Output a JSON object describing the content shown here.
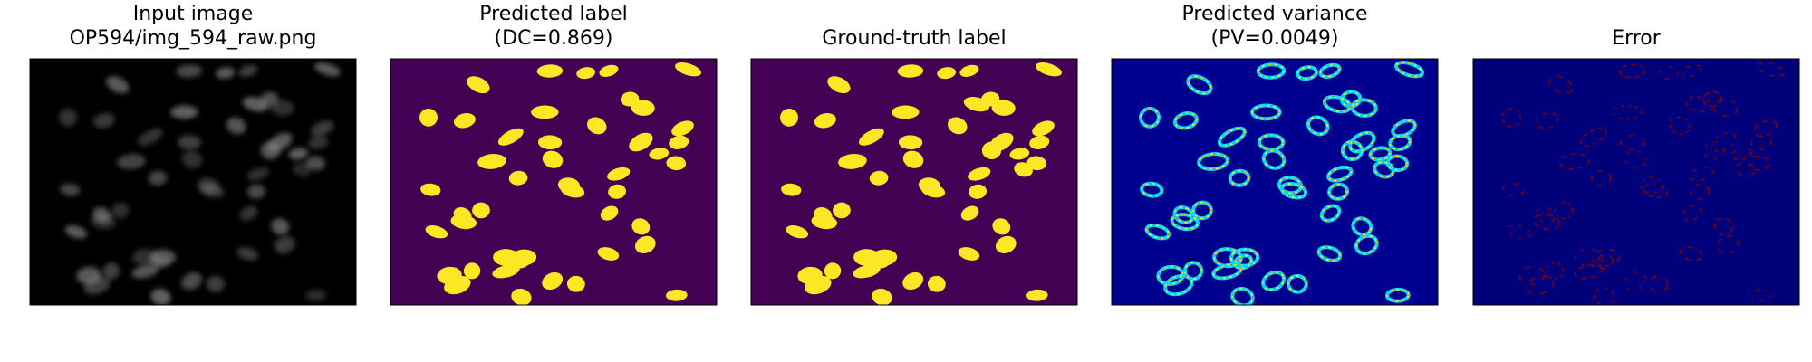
{
  "panels": [
    {
      "title": [
        "Input image",
        "OP594/img_594_raw.png"
      ]
    },
    {
      "title": [
        "Predicted label",
        "(DC=0.869)"
      ]
    },
    {
      "title": [
        "Ground-truth label"
      ]
    },
    {
      "title": [
        "Predicted variance",
        "(PV=0.0049)"
      ]
    },
    {
      "title": [
        "Error"
      ]
    }
  ]
}
